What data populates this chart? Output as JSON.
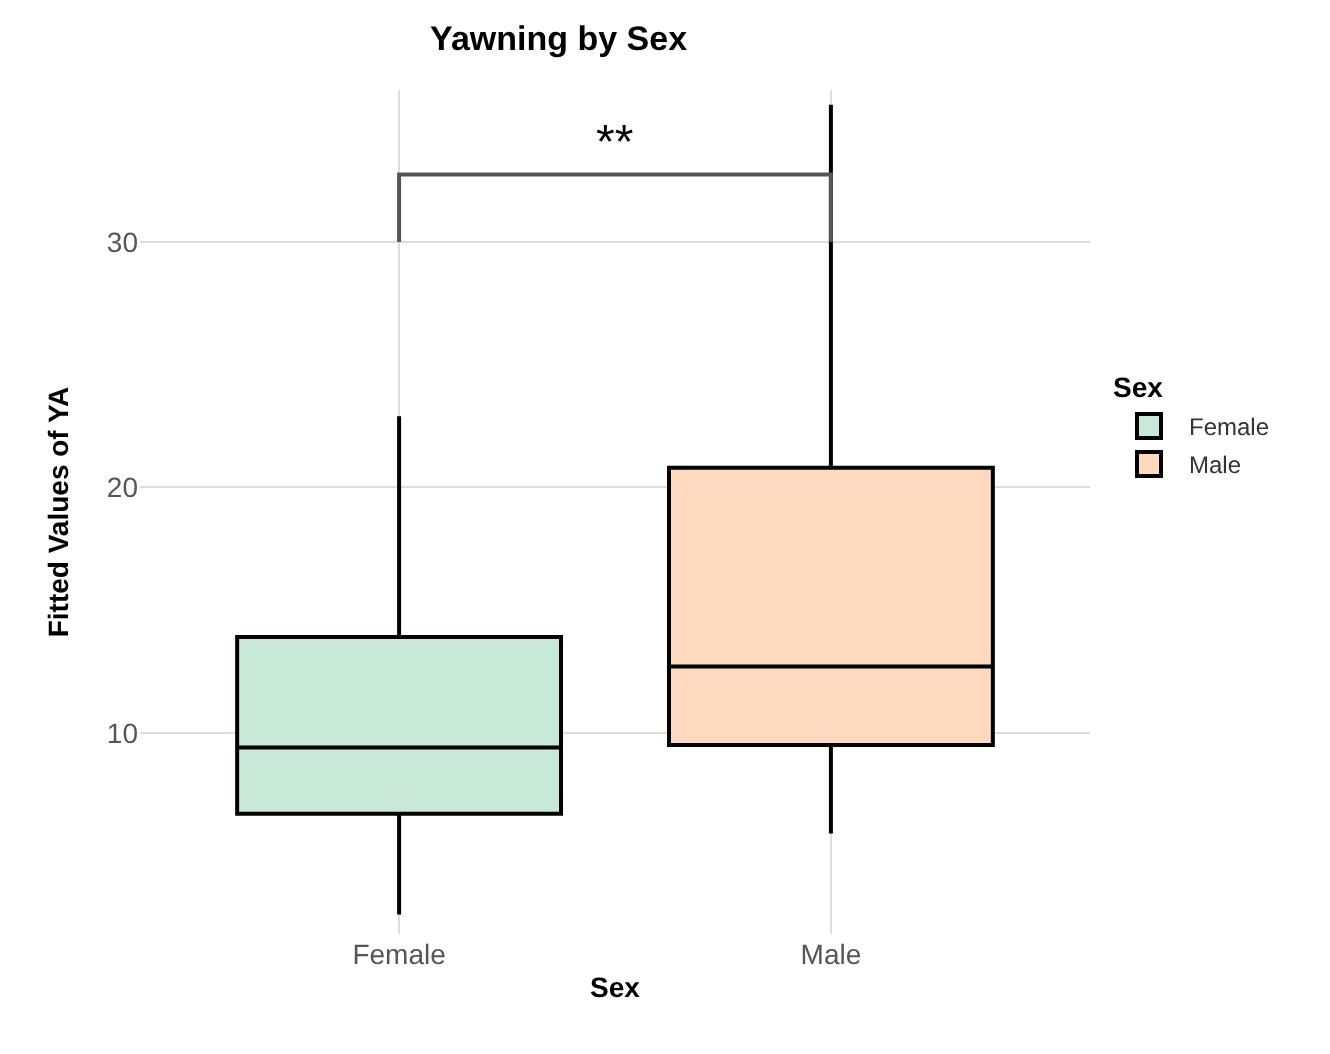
{
  "chart_data": {
    "type": "box",
    "title": "Yawning by Sex",
    "xlabel": "Sex",
    "ylabel": "Fitted Values of YA",
    "legend_title": "Sex",
    "categories": [
      "Female",
      "Male"
    ],
    "series": [
      {
        "name": "Female",
        "color": "#c8e9d8",
        "boxes": [
          {
            "low": 2.6,
            "q1": 6.7,
            "median": 9.4,
            "q3": 13.9,
            "high": 22.9
          },
          null
        ]
      },
      {
        "name": "Male",
        "color": "#fdd9bf",
        "boxes": [
          null,
          {
            "low": 5.9,
            "q1": 9.5,
            "median": 12.7,
            "q3": 20.8,
            "high": 35.6
          }
        ]
      }
    ],
    "annotations": [
      "**"
    ],
    "ylim": [
      1.8,
      36.2
    ],
    "yticks": [
      10,
      20,
      30
    ],
    "grid": true,
    "legend": "right"
  }
}
